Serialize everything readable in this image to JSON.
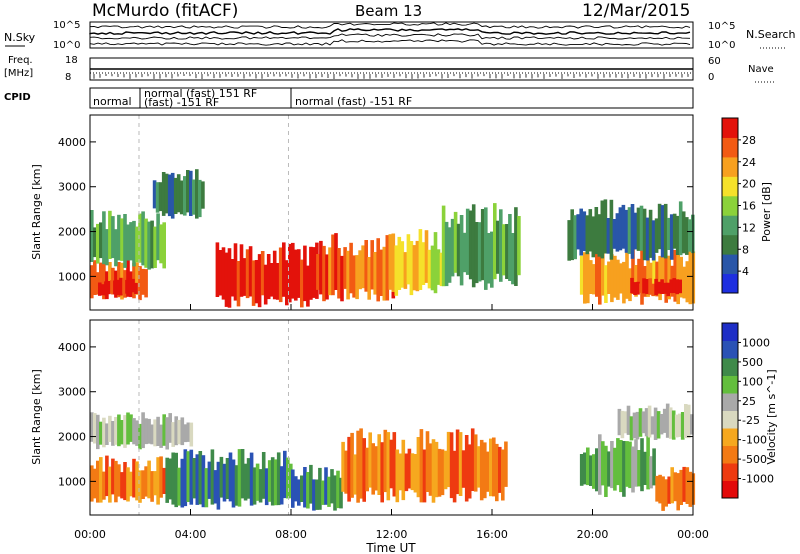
{
  "header": {
    "station": "McMurdo (fitACF)",
    "beam": "Beam 13",
    "date": "12/Mar/2015"
  },
  "top_panels": {
    "nsky_label": "N.Sky",
    "nsky_ticks": [
      "10^5",
      "10^0"
    ],
    "nsearch_label": "N.Search",
    "nsearch_ticks": [
      "10^5",
      "10^0"
    ],
    "freq_label": "Freq.",
    "freq_unit": "[MHz]",
    "freq_ticks": [
      "18",
      "8"
    ],
    "nave_label": "Nave",
    "nave_ticks": [
      "60",
      "0"
    ],
    "cpid_label": "CPID",
    "cpid_segments": [
      {
        "text": "normal"
      },
      {
        "text": "normal (fast) 151 RF"
      },
      {
        "text": "(fast) -151 RF"
      },
      {
        "text": "normal (fast) -151 RF"
      }
    ]
  },
  "colors": {
    "power": [
      "#1e2fe0",
      "#2956a8",
      "#3d7b3f",
      "#4fa068",
      "#8bd23a",
      "#f5e12a",
      "#f7a01f",
      "#f25a13",
      "#e3120b"
    ],
    "velocity": [
      "#1e2ec6",
      "#2a52b5",
      "#3f8a4a",
      "#63be3d",
      "#a9a9a9",
      "#d9d9c0",
      "#f6a81f",
      "#f37a14",
      "#ee3a10",
      "#e20a0a"
    ]
  },
  "chart_data": [
    {
      "type": "heatmap",
      "title": "Power",
      "xlabel": "",
      "ylabel": "Slant Range [km]",
      "x_ticks": [
        "00:00",
        "04:00",
        "08:00",
        "12:00",
        "16:00",
        "20:00",
        "00:00"
      ],
      "y_ticks": [
        "1000",
        "2000",
        "3000",
        "4000"
      ],
      "ylim": [
        250,
        4600
      ],
      "colorbar": {
        "label": "Power [dB]",
        "ticks": [
          "4",
          "8",
          "12",
          "16",
          "20",
          "24",
          "28"
        ],
        "range": [
          0,
          32
        ]
      },
      "regions": [
        {
          "t0": 0.0,
          "t1": 2.2,
          "r0": 550,
          "r1": 1200,
          "level": 7
        },
        {
          "t0": 0.2,
          "t1": 1.8,
          "r0": 600,
          "r1": 900,
          "level": 8
        },
        {
          "t0": 0.0,
          "t1": 3.0,
          "r0": 1300,
          "r1": 2300,
          "level": 3
        },
        {
          "t0": 2.5,
          "t1": 4.5,
          "r0": 2400,
          "r1": 3200,
          "level": 2
        },
        {
          "t0": 5.0,
          "t1": 9.0,
          "r0": 450,
          "r1": 1500,
          "level": 8
        },
        {
          "t0": 9.0,
          "t1": 12.0,
          "r0": 600,
          "r1": 1700,
          "level": 7
        },
        {
          "t0": 12.0,
          "t1": 14.0,
          "r0": 700,
          "r1": 1800,
          "level": 5
        },
        {
          "t0": 14.0,
          "t1": 17.0,
          "r0": 900,
          "r1": 2300,
          "level": 3
        },
        {
          "t0": 19.5,
          "t1": 24.0,
          "r0": 500,
          "r1": 1400,
          "level": 6
        },
        {
          "t0": 21.5,
          "t1": 23.5,
          "r0": 600,
          "r1": 900,
          "level": 8
        },
        {
          "t0": 19.0,
          "t1": 24.0,
          "r0": 1500,
          "r1": 2500,
          "level": 2
        }
      ]
    },
    {
      "type": "heatmap",
      "title": "Velocity",
      "xlabel": "Time UT",
      "ylabel": "Slant Range [km]",
      "x_ticks": [
        "00:00",
        "04:00",
        "08:00",
        "12:00",
        "16:00",
        "20:00",
        "00:00"
      ],
      "y_ticks": [
        "1000",
        "2000",
        "3000",
        "4000"
      ],
      "ylim": [
        250,
        4600
      ],
      "colorbar": {
        "label": "Velocity [m s^-1]",
        "ticks": [
          "1000",
          "500",
          "100",
          "25",
          "-25",
          "-100",
          "-500",
          "-1000"
        ],
        "range": [
          1000,
          -1000
        ]
      },
      "regions": [
        {
          "t0": 0.0,
          "t1": 3.0,
          "r0": 600,
          "r1": 1400,
          "level": 7
        },
        {
          "t0": 0.0,
          "t1": 4.0,
          "r0": 1800,
          "r1": 2400,
          "level": 4
        },
        {
          "t0": 3.0,
          "t1": 8.0,
          "r0": 500,
          "r1": 1500,
          "level": 2
        },
        {
          "t0": 8.0,
          "t1": 10.0,
          "r0": 450,
          "r1": 1200,
          "level": 2
        },
        {
          "t0": 10.0,
          "t1": 16.5,
          "r0": 700,
          "r1": 1900,
          "level": 7
        },
        {
          "t0": 19.5,
          "t1": 22.5,
          "r0": 800,
          "r1": 1800,
          "level": 3
        },
        {
          "t0": 22.5,
          "t1": 24.0,
          "r0": 450,
          "r1": 1200,
          "level": 7
        },
        {
          "t0": 21.0,
          "t1": 24.0,
          "r0": 2000,
          "r1": 2600,
          "level": 4
        }
      ]
    }
  ]
}
